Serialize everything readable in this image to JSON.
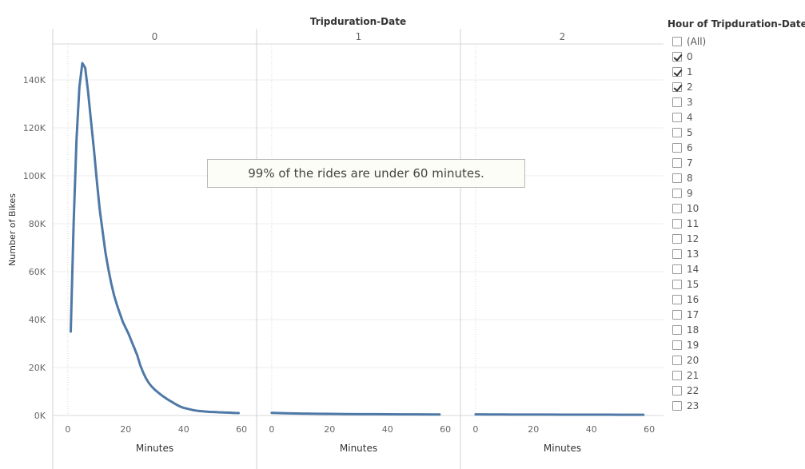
{
  "chart_data": {
    "type": "line",
    "title": "Tripduration-Date",
    "ylabel": "Number of Bikes",
    "xlabel": "Minutes",
    "ylim": [
      0,
      155000
    ],
    "xlim": [
      -3,
      63
    ],
    "y_ticks": [
      0,
      20000,
      40000,
      60000,
      80000,
      100000,
      120000,
      140000
    ],
    "y_tick_labels": [
      "0K",
      "20K",
      "40K",
      "60K",
      "80K",
      "100K",
      "120K",
      "140K"
    ],
    "x_ticks": [
      0,
      20,
      40,
      60
    ],
    "x_tick_labels": [
      "0",
      "20",
      "40",
      "60"
    ],
    "grid": true,
    "line_color": "#4e79a7",
    "panels": [
      {
        "header": "0",
        "x": [
          1,
          2,
          3,
          4,
          5,
          6,
          7,
          8,
          9,
          10,
          11,
          12,
          13,
          14,
          15,
          16,
          17,
          18,
          19,
          20,
          21,
          22,
          23,
          24,
          25,
          26,
          27,
          28,
          29,
          30,
          31,
          32,
          33,
          34,
          35,
          36,
          37,
          38,
          39,
          40,
          41,
          42,
          43,
          44,
          45,
          46,
          47,
          48,
          49,
          50,
          51,
          52,
          53,
          54,
          55,
          56,
          57,
          58,
          59
        ],
        "values": [
          35000,
          80000,
          115000,
          137000,
          147000,
          145000,
          135000,
          123000,
          111000,
          98000,
          86000,
          77000,
          68000,
          61000,
          55000,
          50000,
          46000,
          42500,
          39000,
          36500,
          34000,
          31000,
          28000,
          25000,
          21000,
          18000,
          15500,
          13500,
          12000,
          10800,
          9800,
          8800,
          7900,
          7100,
          6300,
          5600,
          4900,
          4200,
          3600,
          3200,
          2900,
          2600,
          2300,
          2100,
          1900,
          1800,
          1700,
          1600,
          1500,
          1450,
          1400,
          1350,
          1300,
          1250,
          1200,
          1150,
          1100,
          1050,
          1000
        ],
        "x_axis_label": "Minutes"
      },
      {
        "header": "1",
        "x": [
          0,
          5,
          10,
          15,
          20,
          25,
          30,
          35,
          40,
          45,
          50,
          55,
          58
        ],
        "values": [
          1100,
          900,
          800,
          700,
          650,
          600,
          550,
          520,
          500,
          480,
          460,
          440,
          430
        ],
        "x_axis_label": "Minutes"
      },
      {
        "header": "2",
        "x": [
          0,
          5,
          10,
          15,
          20,
          25,
          30,
          35,
          40,
          45,
          50,
          55,
          58
        ],
        "values": [
          450,
          420,
          400,
          380,
          370,
          360,
          350,
          340,
          330,
          320,
          310,
          300,
          300
        ],
        "x_axis_label": "Minutes"
      }
    ],
    "annotation": "99% of the rides are under 60 minutes."
  },
  "filter": {
    "title": "Hour of Tripduration-Date",
    "items": [
      {
        "label": "(All)",
        "checked": false
      },
      {
        "label": "0",
        "checked": true
      },
      {
        "label": "1",
        "checked": true
      },
      {
        "label": "2",
        "checked": true
      },
      {
        "label": "3",
        "checked": false
      },
      {
        "label": "4",
        "checked": false
      },
      {
        "label": "5",
        "checked": false
      },
      {
        "label": "6",
        "checked": false
      },
      {
        "label": "7",
        "checked": false
      },
      {
        "label": "8",
        "checked": false
      },
      {
        "label": "9",
        "checked": false
      },
      {
        "label": "10",
        "checked": false
      },
      {
        "label": "11",
        "checked": false
      },
      {
        "label": "12",
        "checked": false
      },
      {
        "label": "13",
        "checked": false
      },
      {
        "label": "14",
        "checked": false
      },
      {
        "label": "15",
        "checked": false
      },
      {
        "label": "16",
        "checked": false
      },
      {
        "label": "17",
        "checked": false
      },
      {
        "label": "18",
        "checked": false
      },
      {
        "label": "19",
        "checked": false
      },
      {
        "label": "20",
        "checked": false
      },
      {
        "label": "21",
        "checked": false
      },
      {
        "label": "22",
        "checked": false
      },
      {
        "label": "23",
        "checked": false
      }
    ]
  }
}
